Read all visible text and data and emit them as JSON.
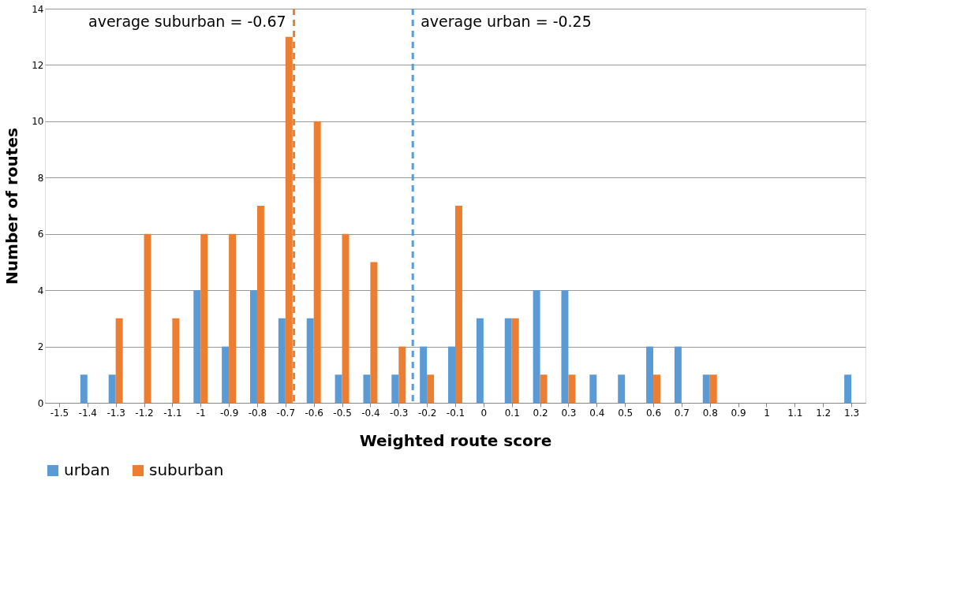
{
  "chart_data": {
    "type": "bar",
    "x": [
      -1.5,
      -1.4,
      -1.3,
      -1.2,
      -1.1,
      -1,
      -0.9,
      -0.8,
      -0.7,
      -0.6,
      -0.5,
      -0.4,
      -0.3,
      -0.2,
      -0.1,
      0,
      0.1,
      0.2,
      0.3,
      0.4,
      0.5,
      0.6,
      0.7,
      0.8,
      0.9,
      1,
      1.1,
      1.2,
      1.3
    ],
    "series": [
      {
        "name": "urban",
        "color": "#5b9bd5",
        "values": [
          0,
          1,
          1,
          0,
          0,
          4,
          2,
          4,
          3,
          3,
          1,
          1,
          1,
          2,
          2,
          3,
          3,
          4,
          4,
          1,
          1,
          2,
          2,
          1,
          0,
          0,
          0,
          0,
          1
        ]
      },
      {
        "name": "suburban",
        "color": "#ed7d31",
        "values": [
          0,
          0,
          3,
          6,
          3,
          6,
          6,
          7,
          13,
          10,
          6,
          5,
          2,
          1,
          7,
          0,
          3,
          1,
          1,
          0,
          0,
          1,
          0,
          1,
          0,
          0,
          0,
          0,
          0
        ]
      }
    ],
    "xlim": [
      -1.55,
      1.35
    ],
    "xticks": [
      -1.5,
      -1.4,
      -1.3,
      -1.2,
      -1.1,
      -1,
      -0.9,
      -0.8,
      -0.7,
      -0.6,
      -0.5,
      -0.4,
      -0.3,
      -0.2,
      -0.1,
      0,
      0.1,
      0.2,
      0.3,
      0.4,
      0.5,
      0.6,
      0.7,
      0.8,
      0.9,
      1,
      1.1,
      1.2,
      1.3
    ],
    "ylim": [
      0,
      14
    ],
    "yticks": [
      0,
      2,
      4,
      6,
      8,
      10,
      12,
      14
    ],
    "xlabel": "Weighted route score",
    "ylabel": "Number of routes",
    "grid": "y",
    "legend": "bottom",
    "ref_lines": [
      {
        "axis": "x",
        "value": -0.67,
        "label": "average suburban = -0.67",
        "color": "#ed7d31",
        "line_style": "dashed"
      },
      {
        "axis": "x",
        "value": -0.25,
        "label": "average urban = -0.25",
        "color": "#5b9bd5",
        "line_style": "dashed"
      }
    ]
  }
}
